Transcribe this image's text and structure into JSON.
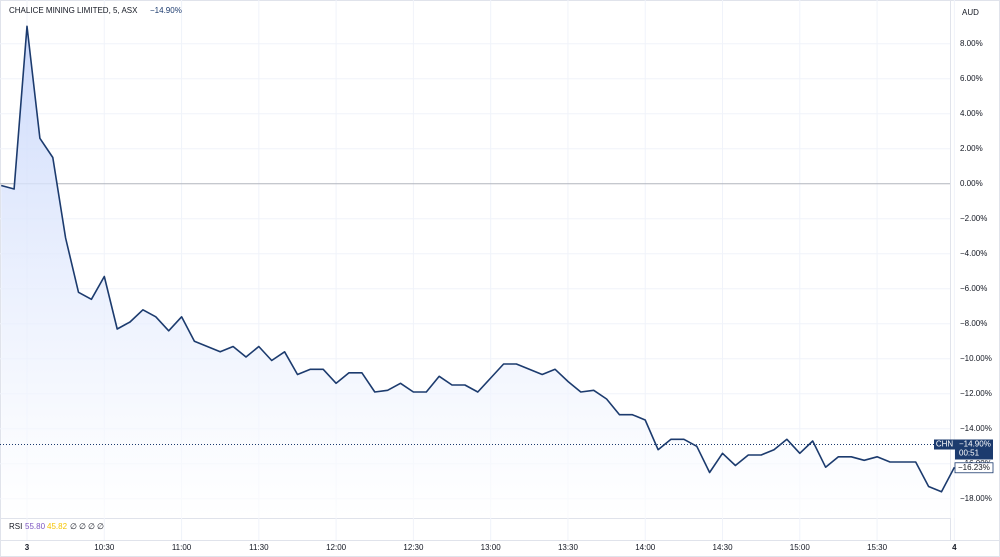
{
  "header": {
    "name": "CHALICE MINING LIMITED, 5, ASX",
    "change": "−14.90%",
    "currency": "AUD"
  },
  "chart_data": {
    "type": "area",
    "categories": [
      null,
      null,
      "3",
      null,
      null,
      null,
      null,
      null,
      "10:30",
      null,
      null,
      null,
      null,
      null,
      "11:00",
      null,
      null,
      null,
      null,
      null,
      "11:30",
      null,
      null,
      null,
      null,
      null,
      "12:00",
      null,
      null,
      null,
      null,
      null,
      "12:30",
      null,
      null,
      null,
      null,
      null,
      "13:00",
      null,
      null,
      null,
      null,
      null,
      "13:30",
      null,
      null,
      null,
      null,
      null,
      "14:00",
      null,
      null,
      null,
      null,
      null,
      "14:30",
      null,
      null,
      null,
      null,
      null,
      "15:00",
      null,
      null,
      null,
      null,
      null,
      "15:30",
      null,
      null,
      null,
      null,
      null,
      "4"
    ],
    "values": [
      -0.1,
      -0.3,
      9.0,
      2.6,
      1.5,
      -3.1,
      -6.2,
      -6.6,
      -5.3,
      -8.3,
      -7.9,
      -7.2,
      -7.6,
      -8.4,
      -7.6,
      -9.0,
      -9.3,
      -9.6,
      -9.3,
      -9.9,
      -9.3,
      -10.1,
      -9.6,
      -10.9,
      -10.6,
      -10.6,
      -11.4,
      -10.8,
      -10.8,
      -11.9,
      -11.8,
      -11.4,
      -11.9,
      -11.9,
      -11.0,
      -11.5,
      -11.5,
      -11.9,
      -11.1,
      -10.3,
      -10.3,
      -10.6,
      -10.9,
      -10.6,
      -11.3,
      -11.9,
      -11.8,
      -12.3,
      -13.2,
      -13.2,
      -13.5,
      -15.2,
      -14.6,
      -14.6,
      -15.0,
      -16.5,
      -15.4,
      -16.1,
      -15.5,
      -15.5,
      -15.2,
      -14.6,
      -15.4,
      -14.7,
      -16.2,
      -15.6,
      -15.6,
      -15.8,
      -15.6,
      -15.9,
      -15.9,
      -15.9,
      -17.3,
      -17.6,
      -16.2
    ],
    "color": "#1c3b6e",
    "ylim": [
      -19.1,
      10.5
    ],
    "yticks": [
      {
        "value": 8,
        "label": "8.00%"
      },
      {
        "value": 6,
        "label": "6.00%"
      },
      {
        "value": 4,
        "label": "4.00%"
      },
      {
        "value": 2,
        "label": "2.00%"
      },
      {
        "value": 0,
        "label": "0.00%"
      },
      {
        "value": -2,
        "label": "−2.00%"
      },
      {
        "value": -4,
        "label": "−4.00%"
      },
      {
        "value": -6,
        "label": "−6.00%"
      },
      {
        "value": -8,
        "label": "−8.00%"
      },
      {
        "value": -10,
        "label": "−10.00%"
      },
      {
        "value": -12,
        "label": "−12.00%"
      },
      {
        "value": -14,
        "label": "−14.00%"
      },
      {
        "value": -16,
        "label": "−16.00%"
      },
      {
        "value": -18,
        "label": "−18.00%"
      }
    ],
    "grid": true,
    "price_line": {
      "value": -14.9,
      "label": "−14.90%"
    },
    "ticker": "CHN",
    "countdown": "00:51",
    "last_value": {
      "value": -16.23,
      "label": "−16.23%"
    }
  },
  "indicator": {
    "name": "RSI",
    "value1": "55.80",
    "value2": "45.82",
    "others": [
      "∅",
      "∅",
      "∅",
      "∅"
    ]
  }
}
